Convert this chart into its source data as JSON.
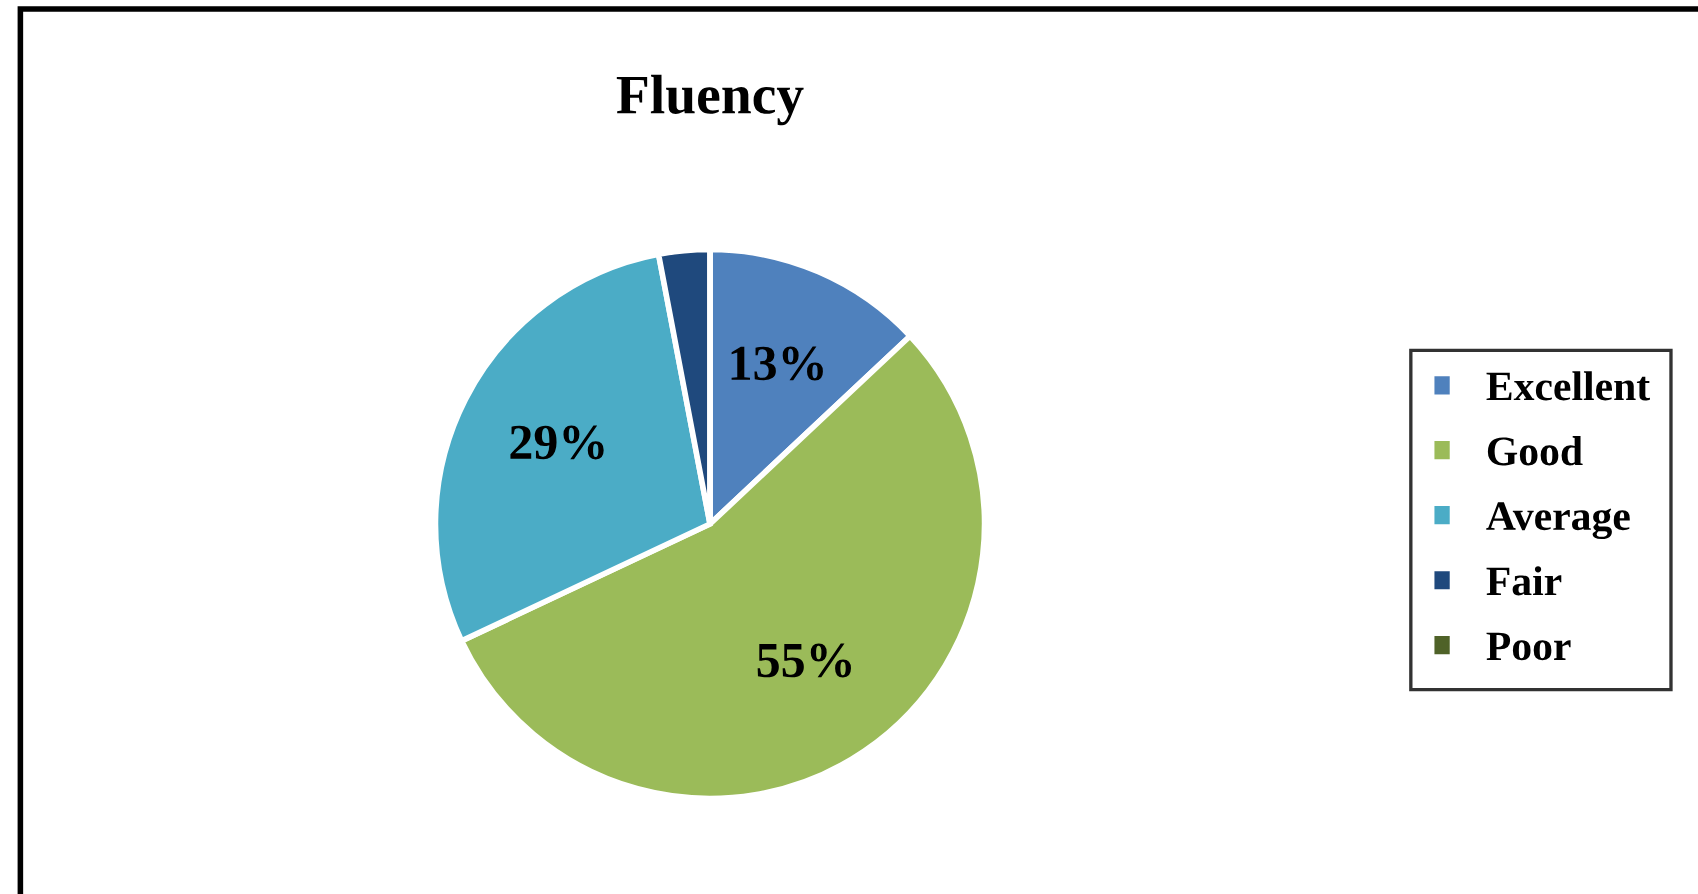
{
  "chart_data": {
    "type": "pie",
    "title": "Fluency",
    "categories": [
      "Excellent",
      "Good",
      "Average",
      "Fair",
      "Poor"
    ],
    "values": [
      13,
      55,
      29,
      3,
      0
    ],
    "colors": [
      "#4f81bd",
      "#9bbb59",
      "#4bacc6",
      "#1f497d",
      "#4f6228"
    ],
    "value_labels": [
      "13%",
      "55%",
      "29%",
      null,
      null
    ],
    "legend": "right"
  }
}
